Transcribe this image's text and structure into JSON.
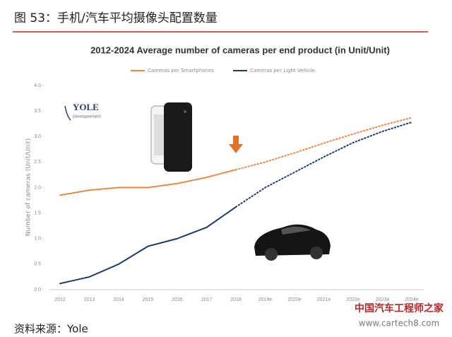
{
  "header": "图 53：手机/汽车平均摄像头配置数量",
  "source": "资料来源：Yole",
  "watermark": {
    "name": "中国汽车工程师之家",
    "url": "www.cartech8.com"
  },
  "logo": {
    "name": "YOLE",
    "tagline": "Développement"
  },
  "chart_data": {
    "type": "line",
    "title": "2012-2024 Average number of cameras per end product (in Unit/Unit)",
    "y_label": "Number of cameras (Unit/Unit)",
    "categories": [
      "2012",
      "2013",
      "2014",
      "2015",
      "2016",
      "2017",
      "2018",
      "2019e",
      "2020e",
      "2021e",
      "2022e",
      "2023e",
      "2024e"
    ],
    "projection_start_index": 6,
    "series": [
      {
        "name": "Cameras per Smartphones",
        "color": "#e8894a",
        "values": [
          1.85,
          1.95,
          2.0,
          2.0,
          2.08,
          2.2,
          2.35,
          2.5,
          2.68,
          2.87,
          3.05,
          3.22,
          3.37
        ]
      },
      {
        "name": "Cameras per Light Vehicle",
        "color": "#1f3a68",
        "values": [
          0.12,
          0.25,
          0.5,
          0.85,
          1.0,
          1.22,
          1.62,
          2.0,
          2.3,
          2.6,
          2.88,
          3.1,
          3.28
        ]
      }
    ],
    "ylim": [
      0,
      4
    ],
    "yticks": [
      {
        "value": 0,
        "label": "0.0"
      },
      {
        "value": 0.5,
        "label": "0.5"
      },
      {
        "value": 1,
        "label": "1.0"
      },
      {
        "value": 1.5,
        "label": "1.5"
      },
      {
        "value": 2,
        "label": "2.0"
      },
      {
        "value": 2.5,
        "label": "2.5"
      },
      {
        "value": 3,
        "label": "3.0"
      },
      {
        "value": 3.5,
        "label": "3.5"
      },
      {
        "value": 4,
        "label": "4.0"
      }
    ],
    "grid": false,
    "legend": "top"
  }
}
